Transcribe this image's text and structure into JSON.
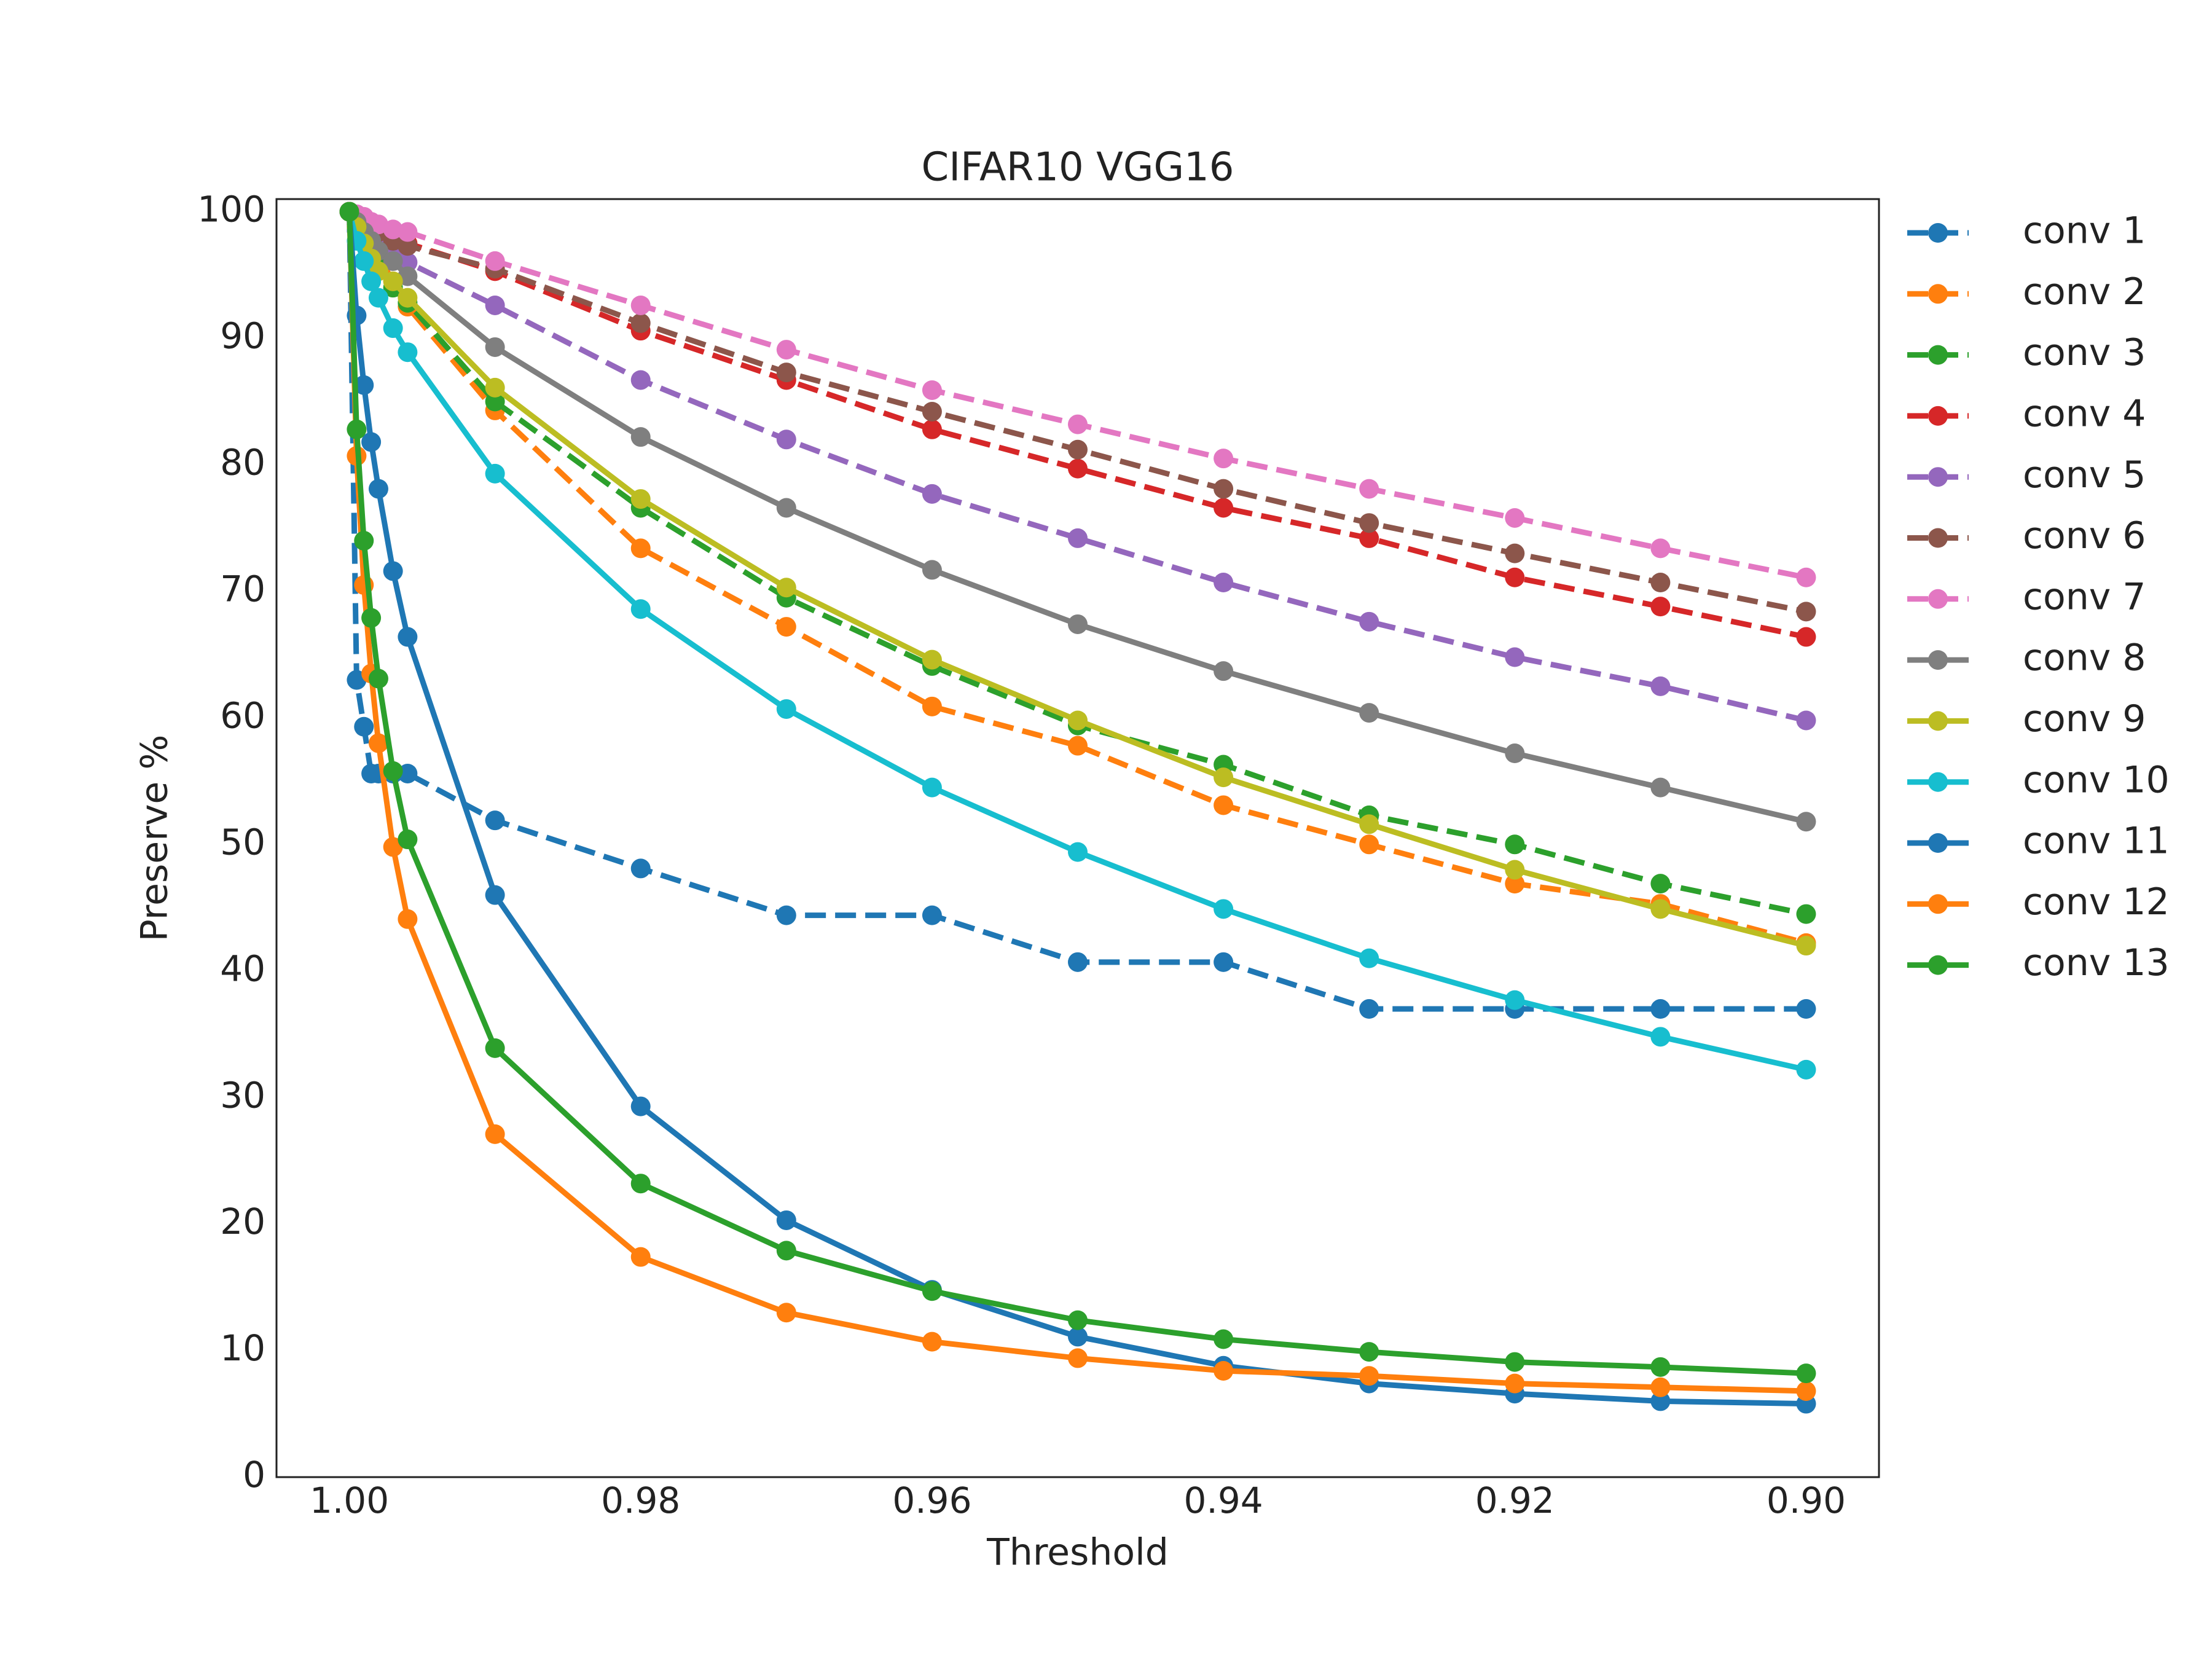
{
  "chart_data": {
    "type": "line",
    "title": "CIFAR10 VGG16",
    "xlabel": "Threshold",
    "ylabel": "Preserve %",
    "x": [
      1.0,
      0.9995,
      0.999,
      0.9985,
      0.998,
      0.997,
      0.996,
      0.99,
      0.98,
      0.97,
      0.96,
      0.95,
      0.94,
      0.93,
      0.92,
      0.91,
      0.9
    ],
    "xlim": [
      1.005,
      0.895
    ],
    "ylim": [
      0,
      101
    ],
    "xticks": [
      {
        "value": 1.0,
        "label": "1.00"
      },
      0.98,
      0.96,
      0.94,
      0.92,
      {
        "value": 0.9,
        "label": "0.90"
      }
    ],
    "yticks": [
      0,
      10,
      20,
      30,
      40,
      50,
      60,
      70,
      80,
      90,
      100
    ],
    "grid": false,
    "legend": "right",
    "series": [
      {
        "name": "conv 1",
        "color": "#1f77b4",
        "linestyle": "dashed",
        "values": [
          100,
          63.0,
          59.3,
          55.6,
          55.6,
          55.6,
          55.6,
          51.9,
          48.1,
          44.4,
          44.4,
          40.7,
          40.7,
          37.0,
          37.0,
          37.0,
          37.0
        ]
      },
      {
        "name": "conv 2",
        "color": "#ff7f0e",
        "linestyle": "dashed",
        "values": [
          100,
          99.5,
          98.5,
          97.5,
          96.5,
          94.5,
          92.5,
          84.3,
          73.4,
          67.2,
          60.9,
          57.8,
          53.1,
          50.0,
          46.9,
          45.3,
          42.2
        ]
      },
      {
        "name": "conv 3",
        "color": "#2ca02c",
        "linestyle": "dashed",
        "values": [
          100,
          99,
          98,
          97,
          96,
          94,
          92.8,
          85.0,
          76.6,
          69.5,
          64.1,
          59.4,
          56.3,
          52.3,
          50.0,
          46.9,
          44.5
        ]
      },
      {
        "name": "conv 4",
        "color": "#d62728",
        "linestyle": "dashed",
        "values": [
          100,
          99.7,
          99.3,
          99,
          98.7,
          98,
          97.5,
          95.3,
          90.6,
          86.7,
          82.8,
          79.7,
          76.6,
          74.2,
          71.1,
          68.8,
          66.4
        ]
      },
      {
        "name": "conv 5",
        "color": "#9467bd",
        "linestyle": "dashed",
        "values": [
          100,
          99.2,
          98.5,
          97.8,
          97.3,
          96.5,
          96.0,
          92.6,
          86.7,
          82.0,
          77.7,
          74.2,
          70.7,
          67.6,
          64.8,
          62.5,
          59.8
        ]
      },
      {
        "name": "conv 6",
        "color": "#8c564b",
        "linestyle": "dashed",
        "values": [
          100,
          99.6,
          99.2,
          98.8,
          98.4,
          97.7,
          97.3,
          95.5,
          91.2,
          87.3,
          84.2,
          81.2,
          78.1,
          75.4,
          73.0,
          70.7,
          68.4
        ]
      },
      {
        "name": "conv 7",
        "color": "#e377c2",
        "linestyle": "dashed",
        "values": [
          100,
          99.8,
          99.6,
          99.2,
          99.0,
          98.6,
          98.4,
          96.1,
          92.6,
          89.1,
          85.9,
          83.2,
          80.5,
          78.1,
          75.8,
          73.4,
          71.1
        ]
      },
      {
        "name": "conv 8",
        "color": "#7f7f7f",
        "linestyle": "solid",
        "values": [
          100,
          99.2,
          98.4,
          97.7,
          96.9,
          96.1,
          94.9,
          89.3,
          82.2,
          76.6,
          71.7,
          67.4,
          63.7,
          60.4,
          57.2,
          54.5,
          51.8
        ]
      },
      {
        "name": "conv 9",
        "color": "#bcbd22",
        "linestyle": "solid",
        "values": [
          100,
          98.8,
          97.5,
          96.3,
          95.3,
          94.5,
          93.2,
          86.1,
          77.3,
          70.3,
          64.6,
          59.8,
          55.3,
          51.6,
          48.0,
          44.9,
          42.0
        ]
      },
      {
        "name": "conv 10",
        "color": "#17becf",
        "linestyle": "solid",
        "values": [
          100,
          97.7,
          96.1,
          94.5,
          93.2,
          90.8,
          88.9,
          79.3,
          68.6,
          60.7,
          54.5,
          49.4,
          44.9,
          41.0,
          37.7,
          34.8,
          32.2
        ]
      },
      {
        "name": "conv 11",
        "color": "#1f77b4",
        "linestyle": "solid",
        "values": [
          100,
          91.8,
          86.3,
          81.8,
          78.1,
          71.6,
          66.4,
          46.0,
          29.3,
          20.3,
          14.8,
          11.1,
          8.8,
          7.4,
          6.6,
          6.0,
          5.8
        ]
      },
      {
        "name": "conv 12",
        "color": "#ff7f0e",
        "linestyle": "solid",
        "values": [
          100,
          80.7,
          70.5,
          63.5,
          58.0,
          49.8,
          44.1,
          27.1,
          17.4,
          13.0,
          10.7,
          9.4,
          8.4,
          8.0,
          7.4,
          7.1,
          6.8
        ]
      },
      {
        "name": "conv 13",
        "color": "#2ca02c",
        "linestyle": "solid",
        "values": [
          100,
          82.8,
          74.0,
          67.9,
          63.1,
          55.8,
          50.4,
          33.9,
          23.2,
          17.9,
          14.7,
          12.4,
          10.9,
          9.9,
          9.1,
          8.7,
          8.2
        ]
      }
    ]
  }
}
